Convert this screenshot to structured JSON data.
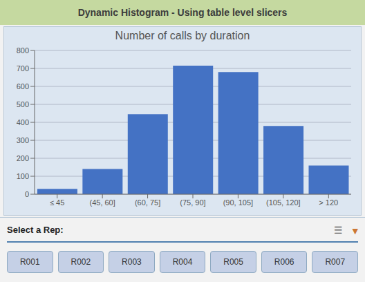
{
  "chart_data": {
    "type": "bar",
    "title": "Dynamic Histogram - Using table level slicers",
    "subtitle": "Number of calls by duration",
    "categories": [
      "≤ 45",
      "(45, 60]",
      "(60, 75]",
      "(75, 90]",
      "(90, 105]",
      "(105, 120]",
      "> 120"
    ],
    "values": [
      30,
      140,
      445,
      715,
      680,
      380,
      160
    ],
    "color": "#4472c4",
    "ylim": [
      0,
      800
    ],
    "yticks": [
      0,
      100,
      200,
      300,
      400,
      500,
      600,
      700,
      800
    ],
    "grid": true,
    "annotations": [
      "Select a Rep:",
      "☰",
      "▼",
      "R001",
      "R002",
      "R003",
      "R004",
      "R005",
      "R006",
      "R007"
    ]
  }
}
